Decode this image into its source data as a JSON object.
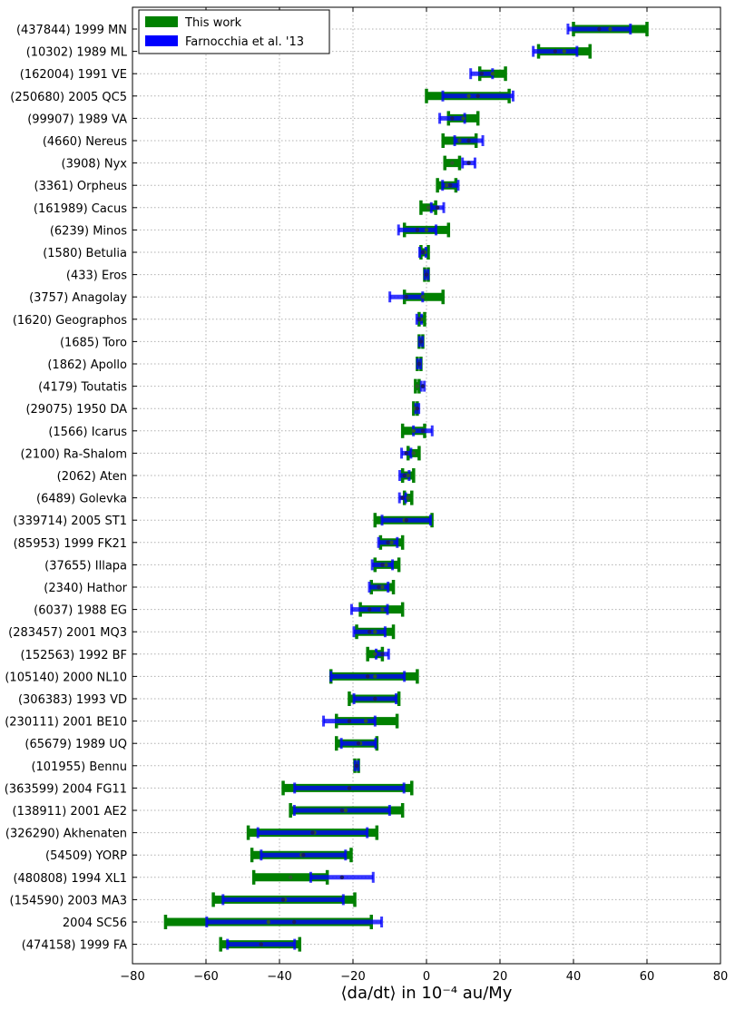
{
  "chart_data": {
    "type": "errorbar",
    "xlabel": "⟨da/dt⟩ in 10⁻⁴ au/My",
    "xlim": [
      -80,
      80
    ],
    "xticks": [
      -80,
      -60,
      -40,
      -20,
      0,
      20,
      40,
      60,
      80
    ],
    "grid": true,
    "legend_placement": "top-left",
    "categories": [
      "(437844) 1999 MN",
      "(10302) 1989 ML",
      "(162004) 1991 VE",
      "(250680) 2005 QC5",
      "(99907) 1989 VA",
      "(4660) Nereus",
      "(3908) Nyx",
      "(3361) Orpheus",
      "(161989) Cacus",
      "(6239) Minos",
      "(1580) Betulia",
      "(433) Eros",
      "(3757) Anagolay",
      "(1620) Geographos",
      "(1685) Toro",
      "(1862) Apollo",
      "(4179) Toutatis",
      "(29075) 1950 DA",
      "(1566) Icarus",
      "(2100) Ra-Shalom",
      "(2062) Aten",
      "(6489) Golevka",
      "(339714) 2005 ST1",
      "(85953) 1999 FK21",
      "(37655) Illapa",
      "(2340) Hathor",
      "(6037) 1988 EG",
      "(283457) 2001 MQ3",
      "(152563) 1992 BF",
      "(105140) 2000 NL10",
      "(306383) 1993 VD",
      "(230111) 2001 BE10",
      "(65679) 1989 UQ",
      "(101955) Bennu",
      "(363599) 2004 FG11",
      "(138911) 2001 AE2",
      "(326290) Akhenaten",
      "(54509) YORP",
      "(480808) 1994 XL1",
      "(154590) 2003 MA3",
      "2004 SC56",
      "(474158) 1999 FA"
    ],
    "series": [
      {
        "name": "This work",
        "color": "#008000",
        "values": [
          50,
          37.5,
          18,
          11.5,
          10,
          9,
          7,
          5.5,
          0.5,
          0,
          -0.5,
          0,
          -1,
          -1.5,
          -1.5,
          -2,
          -2.5,
          -3,
          -3.5,
          -3.5,
          -5,
          -5,
          -6,
          -9.5,
          -11,
          -12,
          -12,
          -14,
          -14,
          -14,
          -14,
          -16.5,
          -18,
          -19,
          -21,
          -22,
          -30.5,
          -34,
          -37,
          -38.5,
          -43,
          -45
        ],
        "lo": [
          40,
          30.5,
          14.5,
          0,
          6,
          4.5,
          5,
          3,
          -1.5,
          -6,
          -1.5,
          -0.5,
          -6,
          -2,
          -2,
          -2.5,
          -3,
          -3.5,
          -6.5,
          -5,
          -6.5,
          -6,
          -14,
          -12.5,
          -14,
          -15,
          -18,
          -19,
          -16,
          -26,
          -21,
          -24.5,
          -24.5,
          -19.5,
          -39,
          -37,
          -48.5,
          -47.5,
          -47,
          -58,
          -71,
          -56
        ],
        "hi": [
          60,
          44.5,
          21.5,
          22.5,
          14,
          13.5,
          9,
          8,
          2.5,
          6,
          0.5,
          0.5,
          4.5,
          -0.5,
          -1,
          -1.5,
          -2,
          -2.5,
          -0.5,
          -2,
          -3.5,
          -4,
          1.5,
          -6.5,
          -7.5,
          -9,
          -6.5,
          -9,
          -12,
          -2.5,
          -7.5,
          -8,
          -13.5,
          -18.5,
          -4,
          -6.5,
          -13.5,
          -20.5,
          -27,
          -19.5,
          -15,
          -34.5
        ]
      },
      {
        "name": "Farnocchia et al. '13",
        "color": "#0000ff",
        "values": [
          47,
          35,
          15,
          14,
          7,
          11.5,
          11.5,
          6.5,
          3,
          -2.5,
          -1,
          0,
          -5.5,
          -2,
          -1.5,
          -2,
          -1,
          -2.5,
          -1,
          -5.5,
          -6,
          -6.5,
          -5.5,
          -10.5,
          -12,
          -13,
          -15.5,
          -15.5,
          -12,
          -16,
          -14,
          -21,
          -18.5,
          -19,
          -21,
          -23,
          -31,
          -33.5,
          -23,
          -39,
          -36,
          -45
        ]
      }
    ]
  }
}
